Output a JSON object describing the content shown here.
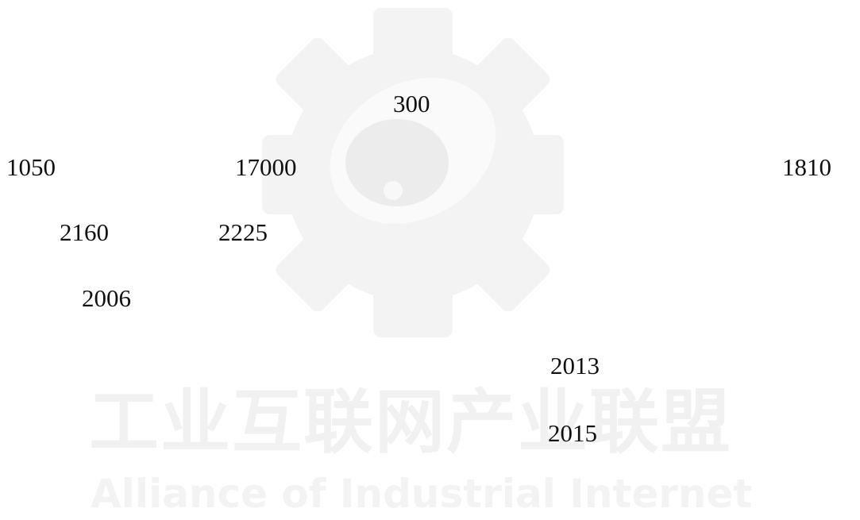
{
  "watermark": {
    "title_cn": "工业互联网产业联盟",
    "title_en": "Alliance of Industrial Internet"
  },
  "numbers": [
    "300",
    "1050",
    "17000",
    "1810",
    "2160",
    "2225",
    "2006",
    "2013",
    "2015"
  ]
}
